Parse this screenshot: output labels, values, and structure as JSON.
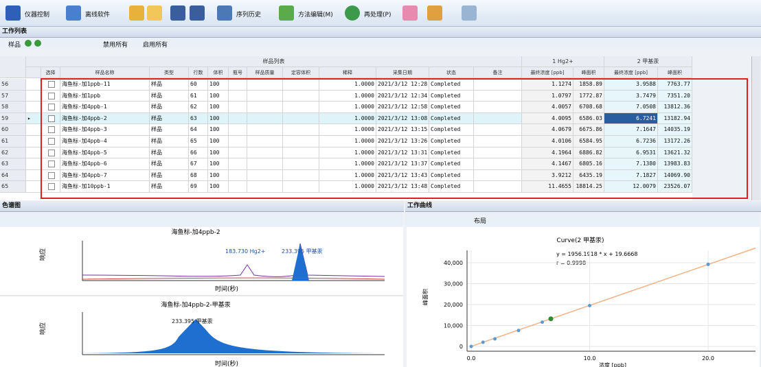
{
  "toolbar": {
    "buttons": [
      "仪器控制",
      "离线软件",
      "序列历史",
      "方法编辑(M)",
      "再处理(P)"
    ]
  },
  "worklist": {
    "title": "工作列表",
    "toolbar": [
      "样品",
      "禁用所有",
      "启用所有"
    ],
    "table": {
      "groups": [
        "样品列表",
        "1 Hg2+",
        "2 甲基汞"
      ],
      "columns": [
        "选择",
        "样品名称",
        "类型",
        "行数",
        "体积",
        "瓶号",
        "样品质量",
        "定容体积",
        "稀释",
        "采集日期",
        "状态",
        "备注",
        "最终浓度 [ppb]",
        "峰面积",
        "最终浓度 [ppb]",
        "峰面积"
      ],
      "selected_row": 3,
      "rows": [
        [
          "56",
          "海鱼标-加1ppb-11",
          "样品",
          "60",
          "100",
          "1.0000",
          "2021/3/12 12:28:59",
          "Completed",
          "1.1274",
          "1858.89",
          "3.9588",
          "7763.77"
        ],
        [
          "57",
          "海鱼标-加1ppb",
          "样品",
          "61",
          "100",
          "1.0000",
          "2021/3/12 12:34:36",
          "Completed",
          "1.0797",
          "1772.87",
          "3.7479",
          "7351.20"
        ],
        [
          "58",
          "海鱼标-加4ppb-1",
          "样品",
          "62",
          "100",
          "1.0000",
          "2021/3/12 12:58:11",
          "Completed",
          "4.0057",
          "6708.68",
          "7.0508",
          "13812.36"
        ],
        [
          "59",
          "海鱼标-加4ppb-2",
          "样品",
          "63",
          "100",
          "1.0000",
          "2021/3/12 13:08:26",
          "Completed",
          "4.0095",
          "6586.03",
          "6.7241",
          "13182.94"
        ],
        [
          "60",
          "海鱼标-加4ppb-3",
          "样品",
          "64",
          "100",
          "1.0000",
          "2021/3/12 13:15:03",
          "Completed",
          "4.0679",
          "6675.86",
          "7.1647",
          "14035.19"
        ],
        [
          "61",
          "海鱼标-加4ppb-4",
          "样品",
          "65",
          "100",
          "1.0000",
          "2021/3/12 13:26:18",
          "Completed",
          "4.0106",
          "6584.95",
          "6.7236",
          "13172.26"
        ],
        [
          "62",
          "海鱼标-加4ppb-5",
          "样品",
          "66",
          "100",
          "1.0000",
          "2021/3/12 13:31:54",
          "Completed",
          "4.1964",
          "6886.82",
          "6.9531",
          "13621.32"
        ],
        [
          "63",
          "海鱼标-加4ppb-6",
          "样品",
          "67",
          "100",
          "1.0000",
          "2021/3/12 13:37:32",
          "Completed",
          "4.1467",
          "6805.16",
          "7.1380",
          "13983.83"
        ],
        [
          "64",
          "海鱼标-加4ppb-7",
          "样品",
          "68",
          "100",
          "1.0000",
          "2021/3/12 13:43:08",
          "Completed",
          "3.9212",
          "6435.19",
          "7.1827",
          "14069.90"
        ],
        [
          "65",
          "海鱼标-加10ppb-1",
          "样品",
          "69",
          "100",
          "1.0000",
          "2021/3/12 13:48:46",
          "Completed",
          "11.4655",
          "18814.25",
          "12.0079",
          "23526.07"
        ]
      ]
    }
  },
  "chromatogram_panel": {
    "title": "色谱图",
    "plots": [
      {
        "title": "海鱼标-加4ppb-2",
        "peaks": [
          "183.730 Hg2+",
          "233.395 甲基汞"
        ],
        "y_label": "响应",
        "x_label": "时间(秒)"
      },
      {
        "title": "海鱼标-加4ppb-2-甲基汞",
        "peaks": [
          "233.395 甲基汞"
        ],
        "y_label": "响应",
        "x_label": "时间(秒)"
      }
    ]
  },
  "curve_panel": {
    "title": "工作曲线",
    "toolbar": [
      "布局"
    ],
    "chart_data": {
      "type": "scatter",
      "title": "Curve(2 甲基汞)",
      "annotations": [
        "y = 1956.1918 * x + 19.6668",
        "r = 0.9998"
      ],
      "x_label": "浓度 [ppb]",
      "y_label": "峰面积",
      "x": [
        0,
        1,
        2,
        4,
        6,
        10,
        20
      ],
      "values": [
        0,
        2000,
        3600,
        7600,
        11600,
        19500,
        39200
      ],
      "color": "#5b9bd5",
      "highlight": {
        "x": 6.7241,
        "y": 13182.94,
        "color": "#2e8b2e"
      },
      "fit": {
        "x": [
          0,
          24
        ],
        "y": [
          20,
          47000
        ],
        "color": "#f4b183"
      },
      "xlim": [
        -0.35,
        24
      ],
      "ylim": [
        -2300,
        45900
      ],
      "xticks": [
        {
          "value": 0,
          "label": "0.0"
        },
        {
          "value": 10,
          "label": "10.0"
        },
        {
          "value": 20,
          "label": "20.0"
        }
      ],
      "yticks": [
        0,
        {
          "value": 10000,
          "label": "10,000"
        },
        {
          "value": 20000,
          "label": "20,000"
        },
        {
          "value": 30000,
          "label": "30,000"
        },
        {
          "value": 40000,
          "label": "40,000"
        }
      ],
      "grid": true
    }
  }
}
